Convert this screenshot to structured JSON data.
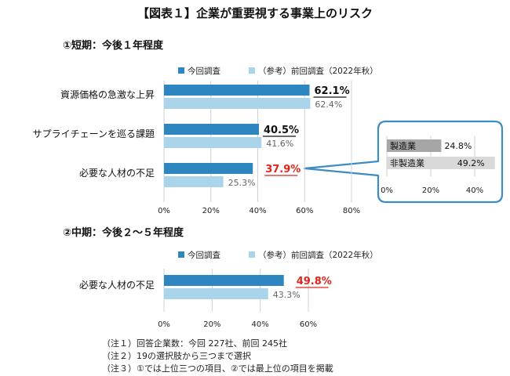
{
  "title": "【図表１】企業が重要視する事業上のリスク",
  "legend": {
    "current": "今回調査",
    "previous": "（参考）前回調査（2022年秋）"
  },
  "colors": {
    "current": "#2e86c1",
    "previous": "#a9d4ea",
    "highlight": "#e0241b",
    "inset_mfg": "#a6a6a6",
    "inset_nonmfg": "#d9d9d9",
    "callout_border": "#3d8cc4"
  },
  "chart_data": [
    {
      "type": "bar",
      "orientation": "horizontal",
      "title": "①短期：今後１年程度",
      "categories": [
        "資源価格の急激な上昇",
        "サプライチェーンを巡る課題",
        "必要な人材の不足"
      ],
      "series": [
        {
          "name": "今回調査",
          "values": [
            62.1,
            40.5,
            37.9
          ]
        },
        {
          "name": "（参考）前回調査（2022年秋）",
          "values": [
            62.4,
            41.6,
            25.3
          ]
        }
      ],
      "current_labels": [
        "62.1%",
        "40.5%",
        "37.9%"
      ],
      "previous_labels": [
        "62.4%",
        "41.6%",
        "25.3%"
      ],
      "highlight_index": 2,
      "xlim": [
        0,
        80
      ],
      "xticks": [
        "0%",
        "20%",
        "40%",
        "60%",
        "80%"
      ],
      "grid": true,
      "legend_position": "top"
    },
    {
      "type": "bar",
      "orientation": "horizontal",
      "categories": [
        "製造業",
        "非製造業"
      ],
      "values": [
        24.8,
        49.2
      ],
      "labels": [
        "24.8%",
        "49.2%"
      ],
      "xlim": [
        0,
        50
      ],
      "xticks": [
        "0%",
        "20%",
        "40%"
      ],
      "grid": true
    },
    {
      "type": "bar",
      "orientation": "horizontal",
      "title": "②中期：今後２～５年程度",
      "categories": [
        "必要な人材の不足"
      ],
      "series": [
        {
          "name": "今回調査",
          "values": [
            49.8
          ]
        },
        {
          "name": "（参考）前回調査（2022年秋）",
          "values": [
            43.3
          ]
        }
      ],
      "current_labels": [
        "49.8%"
      ],
      "previous_labels": [
        "43.3%"
      ],
      "highlight_index": 0,
      "xlim": [
        0,
        60
      ],
      "xticks": [
        "0%",
        "20%",
        "40%",
        "60%"
      ],
      "grid": true,
      "legend_position": "top"
    }
  ],
  "notes": [
    "（注１）回答企業数：今回 227社、前回 245社",
    "（注２）19の選択肢から三つまで選択",
    "（注３）①では上位三つの項目、②では最上位の項目を掲載"
  ]
}
